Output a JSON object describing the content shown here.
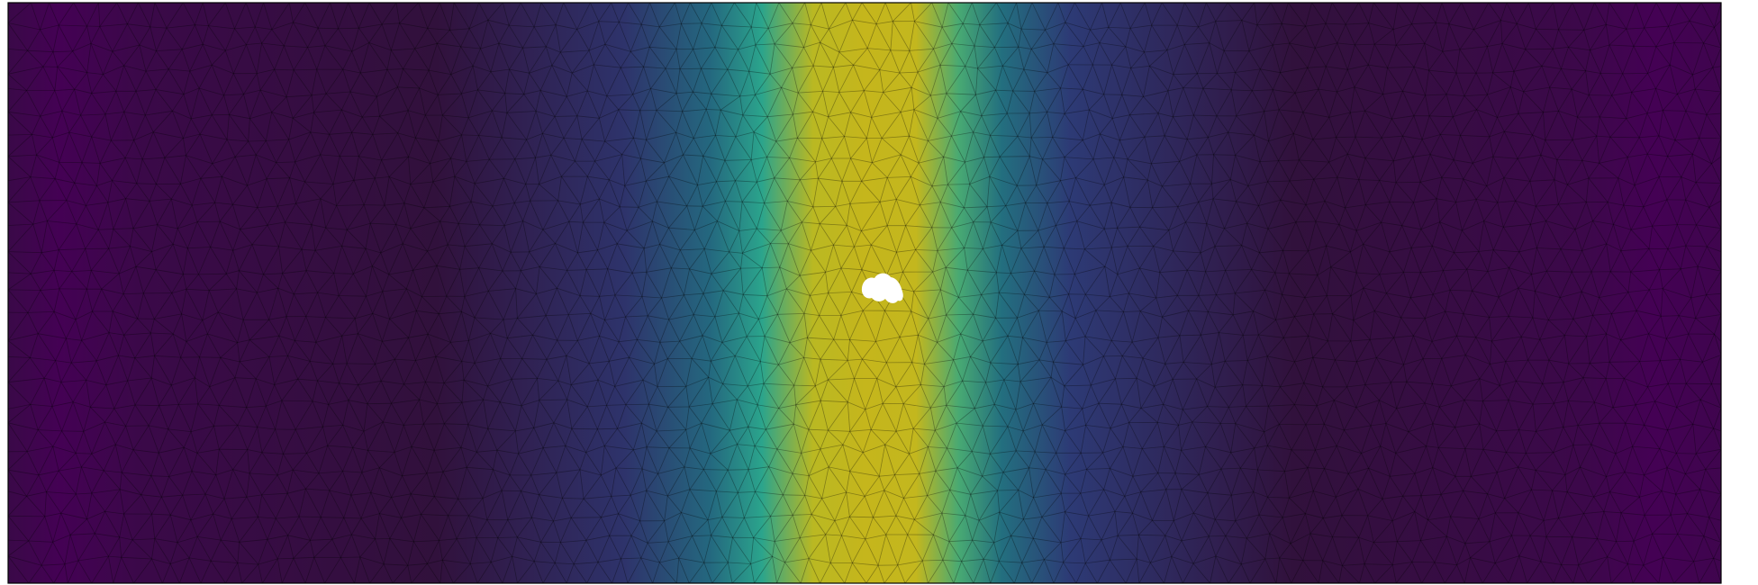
{
  "figure": {
    "kind": "triangulated mesh field plot",
    "colormap": "viridis",
    "colormap_stops": [
      "#440154",
      "#30123b",
      "#2d3e7a",
      "#26607f",
      "#1e8a7f",
      "#2ca58d",
      "#8fb530",
      "#c0b820",
      "#c7b51b"
    ],
    "mesh_edge_color": "#000000",
    "frame_color": "#000000",
    "hole_color": "#ffffff",
    "field_profile": [
      {
        "x": 0.0,
        "v": 0.06
      },
      {
        "x": 0.03,
        "v": 0.0
      },
      {
        "x": 0.08,
        "v": 0.06
      },
      {
        "x": 0.25,
        "v": 0.12
      },
      {
        "x": 0.36,
        "v": 0.22
      },
      {
        "x": 0.41,
        "v": 0.4
      },
      {
        "x": 0.44,
        "v": 0.62
      },
      {
        "x": 0.47,
        "v": 0.86
      },
      {
        "x": 0.5,
        "v": 0.97
      },
      {
        "x": 0.53,
        "v": 0.92
      },
      {
        "x": 0.555,
        "v": 0.66
      },
      {
        "x": 0.58,
        "v": 0.42
      },
      {
        "x": 0.62,
        "v": 0.24
      },
      {
        "x": 0.75,
        "v": 0.12
      },
      {
        "x": 0.92,
        "v": 0.05
      },
      {
        "x": 0.96,
        "v": 0.0
      },
      {
        "x": 1.0,
        "v": 0.03
      }
    ],
    "has_hole": true
  }
}
